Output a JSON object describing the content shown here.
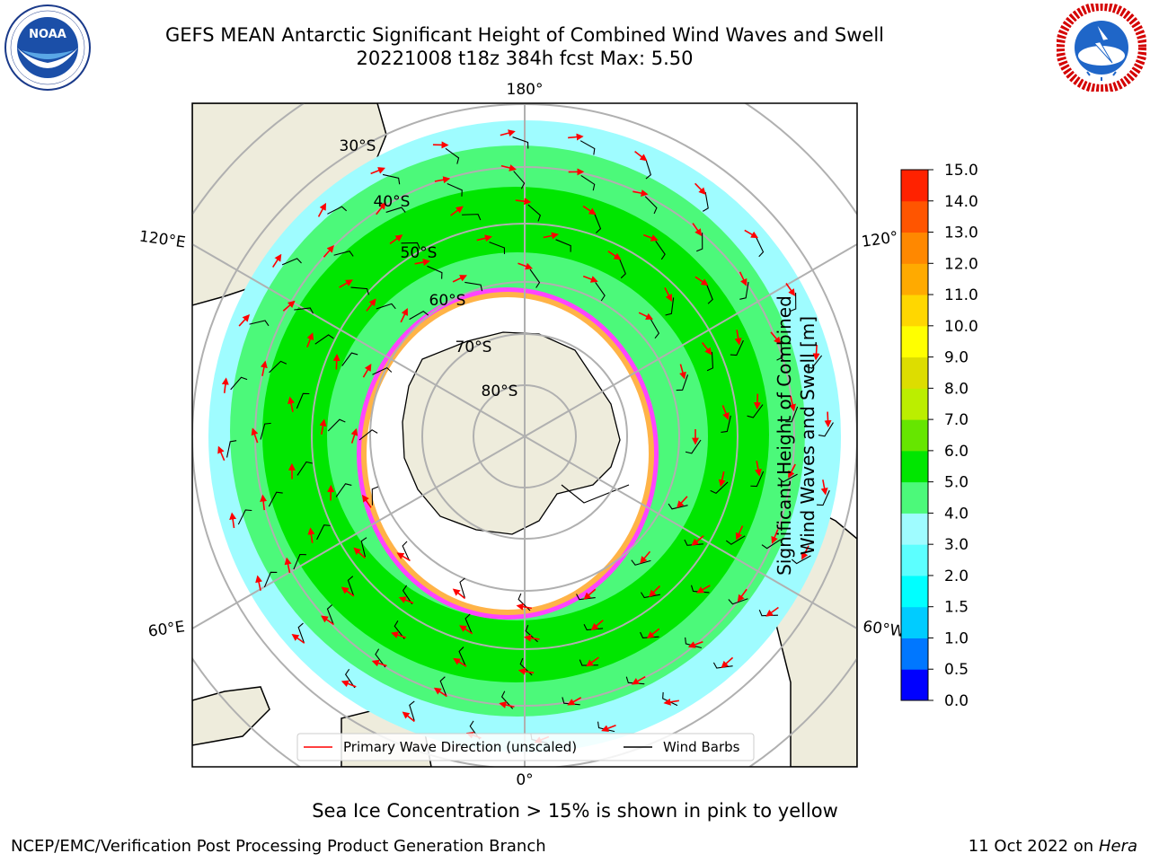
{
  "header": {
    "title_line1": "GEFS MEAN Antarctic Significant Height of Combined Wind Waves and Swell",
    "title_line2": "20221008 t18z 384h fcst   Max: 5.50"
  },
  "logos": {
    "noaa_text": "NOAA",
    "noaa_ring_text": "NATIONAL OCEANIC AND ATMOSPHERIC ADMINISTRATION · U.S. DEPARTMENT OF COMMERCE",
    "nws_ring_text": "NATIONAL WEATHER SERVICE"
  },
  "map": {
    "longitude_labels": {
      "top": "180°",
      "bottom": "0°",
      "left_upper": "120°E",
      "left_lower": "60°E",
      "right_upper": "120°",
      "right_lower": "60°W"
    },
    "latitude_labels": [
      "30°S",
      "40°S",
      "50°S",
      "60°S",
      "70°S",
      "80°S"
    ],
    "colors": {
      "ocean_light": "#9ffcff",
      "wave_3_4": "#4cf97a",
      "wave_4_5": "#00e600",
      "land": "#eeecdc",
      "ice_pink": "#ff44ff",
      "ice_orange": "#ffb347",
      "barb": "#000000",
      "arrow": "#ff0000"
    }
  },
  "legend": {
    "wave_label": "Primary Wave Direction (unscaled)",
    "barb_label": "Wind Barbs"
  },
  "colorbar": {
    "label_line1": "Significant Height of Combined",
    "label_line2": "Wind Waves and Swell [m]",
    "ticks": [
      "0.0",
      "0.5",
      "1.0",
      "1.5",
      "2.0",
      "3.0",
      "4.0",
      "5.0",
      "6.0",
      "7.0",
      "8.0",
      "9.0",
      "10.0",
      "11.0",
      "12.0",
      "13.0",
      "14.0",
      "15.0"
    ],
    "colors": [
      "#0000ff",
      "#0077ff",
      "#00ccff",
      "#00ffff",
      "#5cffff",
      "#9ffcff",
      "#4cf97a",
      "#00e600",
      "#66e600",
      "#bbee00",
      "#dddd00",
      "#ffff00",
      "#ffd700",
      "#ffaa00",
      "#ff8800",
      "#ff5500",
      "#ff2200"
    ]
  },
  "caption": "Sea Ice Concentration > 15% is shown in pink to yellow",
  "footer": {
    "left": "NCEP/EMC/Verification Post Processing Product Generation Branch",
    "right_date": "11 Oct 2022 on ",
    "right_machine": "Hera"
  }
}
